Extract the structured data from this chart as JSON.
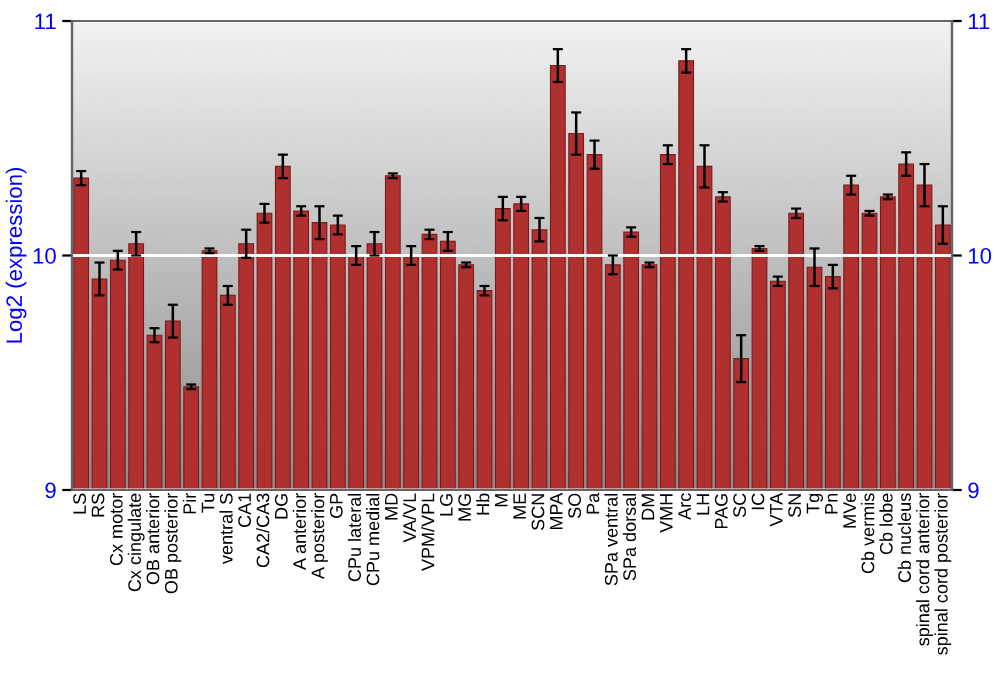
{
  "chart_data": {
    "type": "bar",
    "ylabel": "Log2 (expression)",
    "categories": [
      "LS",
      "RS",
      "Cx motor",
      "Cx cingulate",
      "OB anterior",
      "OB posterior",
      "Pir",
      "Tu",
      "ventral S",
      "CA1",
      "CA2/CA3",
      "DG",
      "A anterior",
      "A posterior",
      "GP",
      "CPu lateral",
      "CPu medial",
      "MD",
      "VA/VL",
      "VPM/VPL",
      "LG",
      "MG",
      "Hb",
      "M",
      "ME",
      "SCN",
      "MPA",
      "SO",
      "Pa",
      "SPa ventral",
      "SPa dorsal",
      "DM",
      "VMH",
      "Arc",
      "LH",
      "PAG",
      "SC",
      "IC",
      "VTA",
      "SN",
      "Tg",
      "Pn",
      "MVe",
      "Cb vermis",
      "Cb lobe",
      "Cb nucleus",
      "spinal cord anterior",
      "spinal cord posterior"
    ],
    "values": [
      10.33,
      9.9,
      9.98,
      10.05,
      9.66,
      9.72,
      9.44,
      10.02,
      9.83,
      10.05,
      10.18,
      10.38,
      10.19,
      10.14,
      10.13,
      10.0,
      10.05,
      10.34,
      10.0,
      10.09,
      10.06,
      9.96,
      9.85,
      10.2,
      10.22,
      10.11,
      10.81,
      10.52,
      10.43,
      9.96,
      10.1,
      9.96,
      10.43,
      10.83,
      10.38,
      10.25,
      9.56,
      10.03,
      9.89,
      10.18,
      9.95,
      9.91,
      10.3,
      10.18,
      10.25,
      10.39,
      10.3,
      10.13
    ],
    "errors": [
      0.03,
      0.07,
      0.04,
      0.05,
      0.03,
      0.07,
      0.01,
      0.01,
      0.04,
      0.06,
      0.04,
      0.05,
      0.02,
      0.07,
      0.04,
      0.04,
      0.05,
      0.01,
      0.04,
      0.02,
      0.04,
      0.01,
      0.02,
      0.05,
      0.03,
      0.05,
      0.07,
      0.09,
      0.06,
      0.04,
      0.02,
      0.01,
      0.04,
      0.05,
      0.09,
      0.02,
      0.1,
      0.01,
      0.02,
      0.02,
      0.08,
      0.05,
      0.04,
      0.01,
      0.01,
      0.05,
      0.09,
      0.08
    ],
    "color": "#b03030",
    "ylim": [
      9,
      11
    ],
    "yticks": [
      9,
      10,
      11
    ],
    "y2lim": [
      9,
      11
    ],
    "y2ticks": [
      9,
      10,
      11
    ],
    "grid": "y"
  }
}
